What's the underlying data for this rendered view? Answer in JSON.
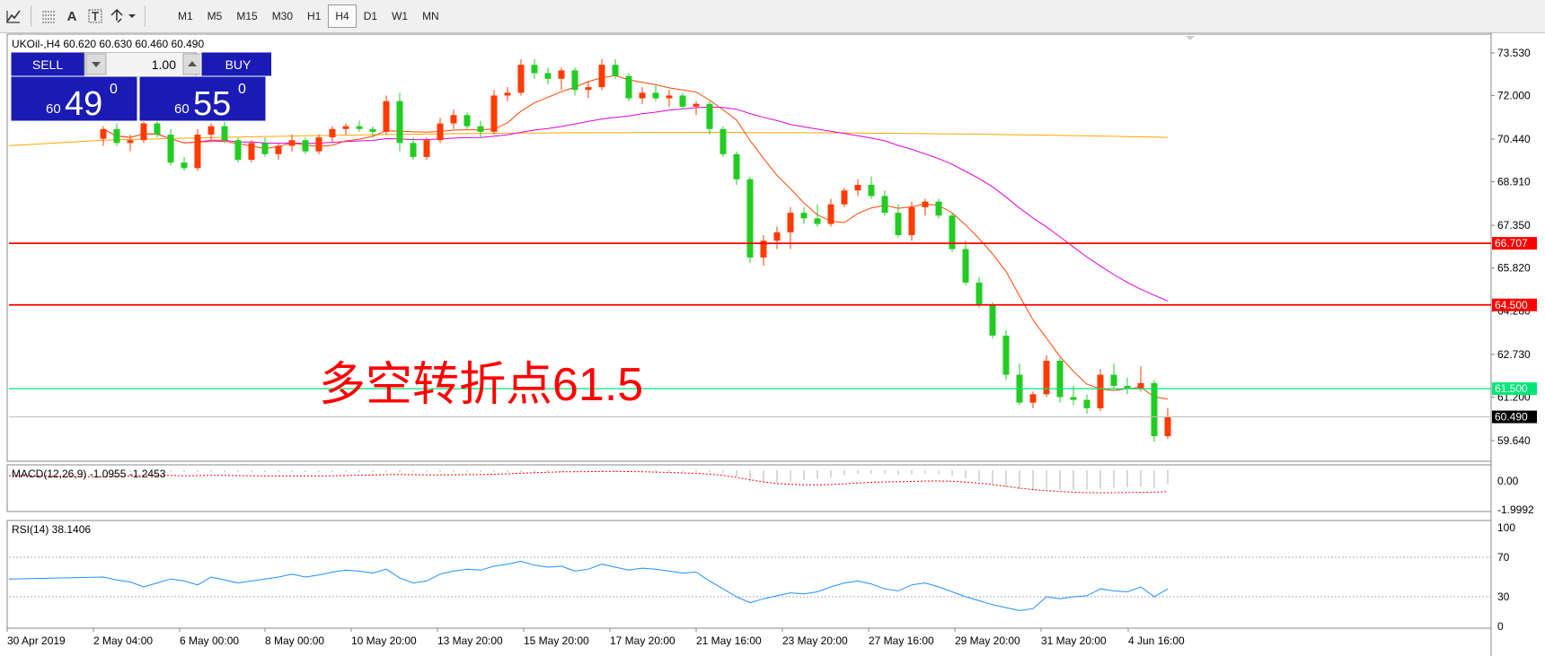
{
  "toolbar": {
    "icons": [
      "chart-tools-icon",
      "grid-icon",
      "text-label-icon",
      "text-box-icon",
      "arrows-icon"
    ],
    "text_tool_label": "A",
    "timeframes": [
      "M1",
      "M5",
      "M15",
      "M30",
      "H1",
      "H4",
      "D1",
      "W1",
      "MN"
    ],
    "active_timeframe": "H4"
  },
  "chart": {
    "header": "UKOil-,H4  60.620 60.630 60.460 60.490",
    "annotation": "多空转折点61.5",
    "price_labels": [
      "73.530",
      "72.000",
      "70.440",
      "68.910",
      "67.350",
      "65.820",
      "64.280",
      "62.730",
      "61.200",
      "59.640"
    ],
    "levels": [
      {
        "label": "66.707",
        "value": 66.707,
        "color": "#ff0000"
      },
      {
        "label": "64.500",
        "value": 64.5,
        "color": "#ff0000"
      },
      {
        "label": "61.500",
        "value": 61.5,
        "color": "#00e676"
      }
    ],
    "current_price_label": "60.490",
    "current_price": 60.49,
    "time_labels": [
      "30 Apr 2019",
      "2 May 04:00",
      "6 May 00:00",
      "8 May 00:00",
      "10 May 20:00",
      "13 May 20:00",
      "15 May 20:00",
      "17 May 20:00",
      "21 May 16:00",
      "23 May 20:00",
      "27 May 16:00",
      "29 May 20:00",
      "31 May 20:00",
      "4 Jun 16:00"
    ]
  },
  "trade_panel": {
    "sell_label": "SELL",
    "buy_label": "BUY",
    "volume": "1.00",
    "sell_price_small": "60",
    "sell_price_big": "49",
    "sell_price_sup": "0",
    "buy_price_small": "60",
    "buy_price_big": "55",
    "buy_price_sup": "0"
  },
  "macd": {
    "header": "MACD(12,26,9) -1.0955 -1.2453",
    "labels": [
      "0.00",
      "-1.9992"
    ]
  },
  "rsi": {
    "header": "RSI(14) 38.1406",
    "labels": [
      "100",
      "70",
      "30",
      "0"
    ]
  },
  "colors": {
    "bull": "#ff3b00",
    "bear": "#22cc22",
    "ma_fast": "#ff4500",
    "ma_mid": "#e000e0",
    "ma_slow": "#ffa500",
    "level_red": "#ff0000",
    "level_green": "#00e676",
    "rsi_line": "#1e90ff",
    "macd_signal": "#ff0000",
    "trade_panel": "#1a1ab4"
  },
  "chart_data": {
    "type": "candlestick",
    "symbol": "UKOil-",
    "timeframe": "H4",
    "ylim": [
      58.9,
      74.2
    ],
    "candles": [
      [
        70.45,
        70.9,
        70.2,
        70.8
      ],
      [
        70.8,
        71.0,
        70.2,
        70.3
      ],
      [
        70.3,
        70.6,
        70.0,
        70.4
      ],
      [
        70.4,
        71.2,
        70.3,
        71.0
      ],
      [
        71.0,
        71.3,
        70.5,
        70.6
      ],
      [
        70.6,
        70.8,
        69.5,
        69.6
      ],
      [
        69.6,
        69.8,
        69.3,
        69.4
      ],
      [
        69.4,
        70.8,
        69.3,
        70.6
      ],
      [
        70.6,
        71.0,
        70.4,
        70.9
      ],
      [
        70.9,
        71.1,
        70.3,
        70.4
      ],
      [
        70.4,
        70.5,
        69.6,
        69.7
      ],
      [
        69.7,
        70.4,
        69.6,
        70.3
      ],
      [
        70.3,
        70.5,
        69.8,
        69.9
      ],
      [
        69.9,
        70.3,
        69.7,
        70.2
      ],
      [
        70.2,
        70.6,
        70.0,
        70.4
      ],
      [
        70.4,
        70.5,
        69.9,
        70.0
      ],
      [
        70.0,
        70.6,
        69.9,
        70.5
      ],
      [
        70.5,
        70.9,
        70.3,
        70.8
      ],
      [
        70.8,
        71.0,
        70.6,
        70.9
      ],
      [
        70.9,
        71.1,
        70.7,
        70.8
      ],
      [
        70.8,
        70.9,
        70.5,
        70.7
      ],
      [
        70.7,
        72.0,
        70.6,
        71.8
      ],
      [
        71.8,
        72.1,
        70.0,
        70.3
      ],
      [
        70.3,
        70.5,
        69.7,
        69.8
      ],
      [
        69.8,
        70.5,
        69.7,
        70.4
      ],
      [
        70.4,
        71.2,
        70.3,
        71.0
      ],
      [
        71.0,
        71.5,
        70.8,
        71.3
      ],
      [
        71.3,
        71.4,
        70.8,
        70.9
      ],
      [
        70.9,
        71.1,
        70.5,
        70.7
      ],
      [
        70.7,
        72.2,
        70.6,
        72.0
      ],
      [
        72.0,
        72.3,
        71.8,
        72.1
      ],
      [
        72.1,
        73.3,
        72.0,
        73.1
      ],
      [
        73.1,
        73.3,
        72.6,
        72.8
      ],
      [
        72.8,
        73.0,
        72.4,
        72.6
      ],
      [
        72.6,
        73.0,
        72.2,
        72.9
      ],
      [
        72.9,
        73.0,
        72.0,
        72.2
      ],
      [
        72.2,
        72.5,
        71.9,
        72.3
      ],
      [
        72.3,
        73.3,
        72.2,
        73.1
      ],
      [
        73.1,
        73.3,
        72.6,
        72.7
      ],
      [
        72.7,
        72.8,
        71.8,
        71.9
      ],
      [
        71.9,
        72.3,
        71.7,
        72.1
      ],
      [
        72.1,
        72.4,
        71.8,
        71.9
      ],
      [
        71.9,
        72.2,
        71.6,
        72.0
      ],
      [
        72.0,
        72.1,
        71.5,
        71.6
      ],
      [
        71.6,
        71.8,
        71.3,
        71.7
      ],
      [
        71.7,
        71.8,
        70.6,
        70.8
      ],
      [
        70.8,
        70.9,
        69.8,
        69.9
      ],
      [
        69.9,
        70.0,
        68.8,
        69.0
      ],
      [
        69.0,
        69.1,
        66.0,
        66.2
      ],
      [
        66.2,
        67.0,
        65.9,
        66.8
      ],
      [
        66.8,
        67.3,
        66.5,
        67.1
      ],
      [
        67.1,
        68.0,
        66.5,
        67.8
      ],
      [
        67.8,
        68.0,
        67.4,
        67.6
      ],
      [
        67.6,
        68.1,
        67.3,
        67.4
      ],
      [
        67.4,
        68.3,
        67.3,
        68.1
      ],
      [
        68.1,
        68.7,
        68.0,
        68.6
      ],
      [
        68.6,
        69.0,
        68.4,
        68.8
      ],
      [
        68.8,
        69.1,
        68.3,
        68.4
      ],
      [
        68.4,
        68.6,
        67.7,
        67.8
      ],
      [
        67.8,
        68.1,
        66.9,
        67.0
      ],
      [
        67.0,
        68.2,
        66.8,
        68.0
      ],
      [
        68.0,
        68.3,
        67.7,
        68.2
      ],
      [
        68.2,
        68.3,
        67.6,
        67.7
      ],
      [
        67.7,
        67.8,
        66.4,
        66.5
      ],
      [
        66.5,
        66.8,
        65.2,
        65.3
      ],
      [
        65.3,
        65.5,
        64.4,
        64.5
      ],
      [
        64.5,
        64.6,
        63.3,
        63.4
      ],
      [
        63.4,
        63.6,
        61.8,
        62.0
      ],
      [
        62.0,
        62.4,
        60.9,
        61.0
      ],
      [
        61.0,
        61.4,
        60.8,
        61.3
      ],
      [
        61.3,
        62.7,
        61.2,
        62.5
      ],
      [
        62.5,
        62.6,
        61.0,
        61.2
      ],
      [
        61.2,
        61.6,
        60.9,
        61.1
      ],
      [
        61.1,
        61.3,
        60.6,
        60.8
      ],
      [
        60.8,
        62.2,
        60.7,
        62.0
      ],
      [
        62.0,
        62.4,
        61.5,
        61.6
      ],
      [
        61.6,
        61.9,
        61.3,
        61.5
      ],
      [
        61.5,
        62.3,
        61.4,
        61.7
      ],
      [
        61.7,
        61.8,
        59.6,
        59.8
      ],
      [
        59.8,
        60.8,
        59.7,
        60.49
      ]
    ],
    "indicators": [
      "MA fast",
      "MA mid",
      "MA slow",
      "MACD(12,26,9)",
      "RSI(14)"
    ],
    "macd_last": [
      -1.0955,
      -1.2453
    ],
    "rsi_last": 38.1406,
    "rsi_ylim": [
      0,
      100
    ],
    "rsi_levels": [
      70,
      30
    ],
    "rsi_values": [
      50,
      47,
      45,
      40,
      44,
      48,
      46,
      42,
      50,
      47,
      44,
      46,
      48,
      50,
      53,
      50,
      52,
      55,
      57,
      56,
      54,
      58,
      49,
      44,
      46,
      53,
      56,
      58,
      57,
      61,
      63,
      66,
      62,
      60,
      61,
      56,
      58,
      63,
      60,
      57,
      59,
      58,
      56,
      54,
      55,
      46,
      38,
      30,
      24,
      28,
      31,
      34,
      33,
      35,
      40,
      44,
      46,
      43,
      38,
      36,
      42,
      44,
      40,
      35,
      30,
      26,
      22,
      19,
      16,
      18,
      30,
      28,
      30,
      31,
      38,
      36,
      35,
      40,
      30,
      38
    ],
    "macd_hist": [
      0.2,
      0.2,
      0.25,
      0.3,
      0.25,
      0.15,
      0.1,
      0.2,
      0.25,
      0.2,
      0.1,
      0.12,
      0.1,
      0.1,
      0.15,
      0.12,
      0.15,
      0.2,
      0.25,
      0.28,
      0.3,
      0.35,
      0.3,
      0.2,
      0.18,
      0.22,
      0.28,
      0.3,
      0.3,
      0.35,
      0.45,
      0.55,
      0.6,
      0.6,
      0.62,
      0.55,
      0.55,
      0.6,
      0.6,
      0.5,
      0.45,
      0.4,
      0.35,
      0.3,
      0.25,
      0.1,
      -0.2,
      -0.5,
      -0.9,
      -1.0,
      -1.0,
      -0.9,
      -0.8,
      -0.7,
      -0.6,
      -0.4,
      -0.3,
      -0.25,
      -0.3,
      -0.35,
      -0.3,
      -0.25,
      -0.3,
      -0.45,
      -0.65,
      -0.85,
      -1.05,
      -1.3,
      -1.5,
      -1.55,
      -1.5,
      -1.55,
      -1.55,
      -1.55,
      -1.45,
      -1.4,
      -1.35,
      -1.3,
      -1.4,
      -1.1
    ]
  }
}
